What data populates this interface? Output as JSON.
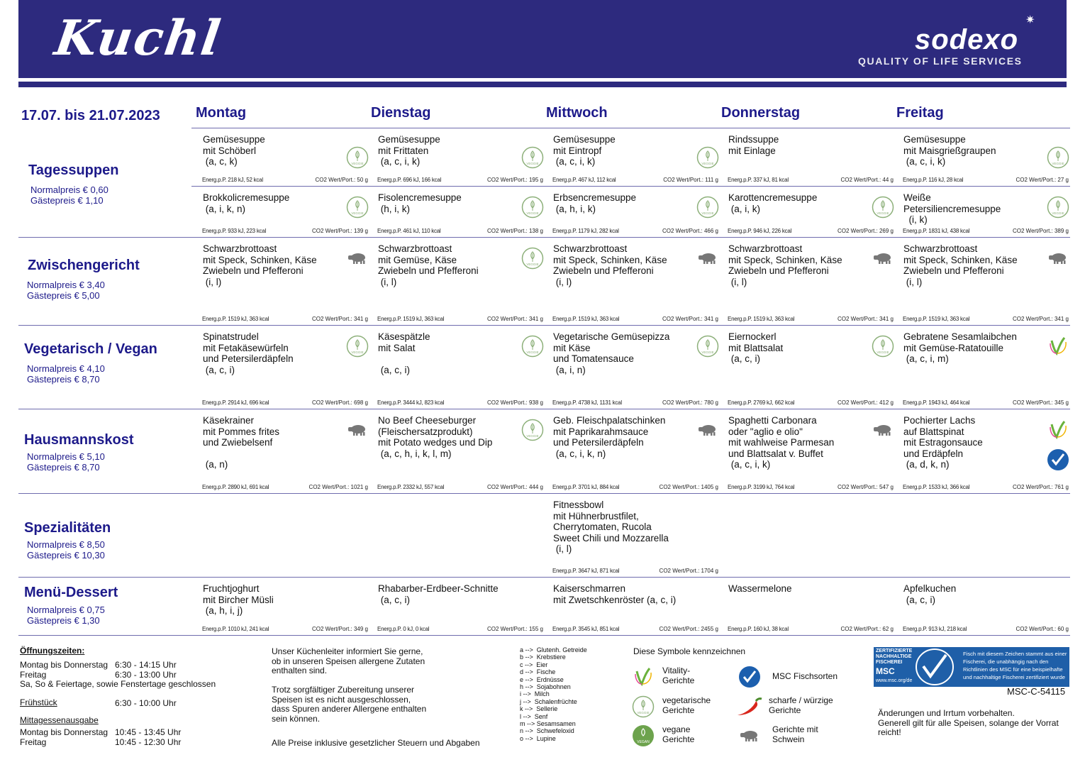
{
  "header": {
    "logo_text": "Kuchl",
    "brand": "sodexo",
    "brand_tagline": "QUALITY OF LIFE SERVICES"
  },
  "week": "17.07. bis 21.07.2023",
  "days": [
    "Montag",
    "Dienstag",
    "Mittwoch",
    "Donnerstag",
    "Freitag"
  ],
  "colors": {
    "navy": "#2d2a7e",
    "heading": "#1d1a8a",
    "veggie": "#7fa866",
    "pig": "#777777",
    "msc": "#1c5fae"
  },
  "categories": [
    {
      "name": "Tagessuppen",
      "normal": "Normalpreis € 0,60",
      "guest": "Gästepreis € 1,10",
      "rows": [
        [
          {
            "lines": [
              "Gemüsesuppe",
              "mit Schöberl",
              " (a, c, k)"
            ],
            "icons": [
              "veggie"
            ],
            "energy": "Energ.p.P. 218 kJ, 52 kcal",
            "co2": "CO2 Wert/Port.: 50 g"
          },
          {
            "lines": [
              "Gemüsesuppe",
              "mit Frittaten",
              " (a, c, i, k)"
            ],
            "icons": [
              "veggie"
            ],
            "energy": "Energ.p.P. 696 kJ, 166 kcal",
            "co2": "CO2 Wert/Port.: 195 g"
          },
          {
            "lines": [
              "Gemüsesuppe",
              "mit Eintropf",
              " (a, c, i, k)"
            ],
            "icons": [
              "veggie"
            ],
            "energy": "Energ.p.P. 467 kJ, 112 kcal",
            "co2": "CO2 Wert/Port.: 111 g"
          },
          {
            "lines": [
              "Rindssuppe",
              "mit Einlage"
            ],
            "icons": [],
            "energy": "Energ.p.P. 337 kJ, 81 kcal",
            "co2": "CO2 Wert/Port.: 44 g"
          },
          {
            "lines": [
              "Gemüsesuppe",
              "mit Maisgrießgraupen",
              " (a, c, i, k)"
            ],
            "icons": [
              "veggie"
            ],
            "energy": "Energ.p.P. 116 kJ, 28 kcal",
            "co2": "CO2 Wert/Port.: 27 g"
          }
        ],
        [
          {
            "lines": [
              "Brokkolicremesuppe",
              " (a, i, k, n)"
            ],
            "icons": [
              "veggie"
            ],
            "energy": "Energ.p.P. 933 kJ, 223 kcal",
            "co2": "CO2 Wert/Port.: 139 g"
          },
          {
            "lines": [
              "Fisolencremesuppe",
              " (h, i, k)"
            ],
            "icons": [
              "veggie"
            ],
            "energy": "Energ.p.P. 461 kJ, 110 kcal",
            "co2": "CO2 Wert/Port.: 138 g"
          },
          {
            "lines": [
              "Erbsencremesuppe",
              " (a, h, i, k)"
            ],
            "icons": [
              "veggie"
            ],
            "energy": "Energ.p.P. 1179 kJ, 282 kcal",
            "co2": "CO2 Wert/Port.: 466 g"
          },
          {
            "lines": [
              "Karottencremesuppe",
              " (a, i, k)"
            ],
            "icons": [
              "veggie"
            ],
            "energy": "Energ.p.P. 946 kJ, 226 kcal",
            "co2": "CO2 Wert/Port.: 269 g"
          },
          {
            "lines": [
              "Weiße",
              "Petersiliencremesuppe",
              "  (i, k)"
            ],
            "icons": [
              "veggie"
            ],
            "energy": "Energ.p.P. 1831 kJ, 438 kcal",
            "co2": "CO2 Wert/Port.: 389 g"
          }
        ]
      ]
    },
    {
      "name": "Zwischengericht",
      "normal": "Normalpreis € 3,40",
      "guest": "Gästepreis € 5,00",
      "rows": [
        [
          {
            "lines": [
              "Schwarzbrottoast",
              "mit Speck, Schinken, Käse",
              "Zwiebeln und Pfefferoni",
              " (i, l)"
            ],
            "icons": [
              "pig"
            ],
            "energy": "Energ.p.P. 1519 kJ, 363 kcal",
            "co2": "CO2 Wert/Port.: 341 g"
          },
          {
            "lines": [
              "Schwarzbrottoast",
              "mit Gemüse, Käse",
              "Zwiebeln und Pfefferoni",
              " (i, l)"
            ],
            "icons": [
              "veggie"
            ],
            "energy": "Energ.p.P. 1519 kJ, 363 kcal",
            "co2": "CO2 Wert/Port.: 341 g"
          },
          {
            "lines": [
              "Schwarzbrottoast",
              "mit Speck, Schinken, Käse",
              "Zwiebeln und Pfefferoni",
              " (i, l)"
            ],
            "icons": [
              "pig"
            ],
            "energy": "Energ.p.P. 1519 kJ, 363 kcal",
            "co2": "CO2 Wert/Port.: 341 g"
          },
          {
            "lines": [
              "Schwarzbrottoast",
              "mit Speck, Schinken, Käse",
              "Zwiebeln und Pfefferoni",
              " (i, l)"
            ],
            "icons": [
              "pig"
            ],
            "energy": "Energ.p.P. 1519 kJ, 363 kcal",
            "co2": "CO2 Wert/Port.: 341 g"
          },
          {
            "lines": [
              "Schwarzbrottoast",
              "mit Speck, Schinken, Käse",
              "Zwiebeln und Pfefferoni",
              " (i, l)"
            ],
            "icons": [
              "pig"
            ],
            "energy": "Energ.p.P. 1519 kJ, 363 kcal",
            "co2": "CO2 Wert/Port.: 341 g"
          }
        ]
      ]
    },
    {
      "name": "Vegetarisch / Vegan",
      "normal": "Normalpreis € 4,10",
      "guest": "Gästepreis € 8,70",
      "rows": [
        [
          {
            "lines": [
              "Spinatstrudel",
              "mit Fetakäsewürfeln",
              "und Petersilerdäpfeln",
              " (a, c, i)"
            ],
            "icons": [
              "veggie"
            ],
            "energy": "Energ.p.P. 2914 kJ, 696 kcal",
            "co2": "CO2 Wert/Port.: 698 g"
          },
          {
            "lines": [
              "Käsespätzle",
              "mit Salat",
              "",
              " (a, c, i)"
            ],
            "icons": [
              "veggie"
            ],
            "energy": "Energ.p.P. 3444 kJ, 823 kcal",
            "co2": "CO2 Wert/Port.: 938 g"
          },
          {
            "lines": [
              "Vegetarische Gemüsepizza",
              "mit Käse",
              "und Tomatensauce",
              " (a, i, n)"
            ],
            "icons": [
              "veggie"
            ],
            "energy": "Energ.p.P. 4738 kJ, 1131 kcal",
            "co2": "CO2 Wert/Port.: 780 g"
          },
          {
            "lines": [
              "Eiernockerl",
              "mit Blattsalat",
              " (a, c, i)"
            ],
            "icons": [
              "veggie"
            ],
            "energy": "Energ.p.P. 2769 kJ, 662 kcal",
            "co2": "CO2 Wert/Port.: 412 g"
          },
          {
            "lines": [
              "Gebratene Sesamlaibchen",
              "mit Gemüse-Ratatouille",
              " (a, c, i, m)"
            ],
            "icons": [
              "vitality"
            ],
            "energy": "Energ.p.P. 1943 kJ, 464 kcal",
            "co2": "CO2 Wert/Port.: 345 g"
          }
        ]
      ]
    },
    {
      "name": "Hausmannskost",
      "normal": "Normalpreis € 5,10",
      "guest": "Gästepreis € 8,70",
      "rows": [
        [
          {
            "lines": [
              "Käsekrainer",
              "mit Pommes frites",
              "und Zwiebelsenf",
              "",
              " (a, n)"
            ],
            "icons": [
              "pig"
            ],
            "energy": "Energ.p.P. 2890 kJ, 691 kcal",
            "co2": "CO2 Wert/Port.: 1021 g"
          },
          {
            "lines": [
              "No Beef Cheeseburger",
              "(Fleischersatzprodukt)",
              "mit Potato wedges und Dip",
              " (a, c, h, i, k, l, m)"
            ],
            "icons": [
              "veggie"
            ],
            "energy": "Energ.p.P. 2332 kJ, 557 kcal",
            "co2": "CO2 Wert/Port.: 444 g"
          },
          {
            "lines": [
              "Geb. Fleischpalatschinken",
              "mit Paprikarahmsauce",
              "und Petersilerdäpfeln",
              " (a, c, i, k, n)"
            ],
            "icons": [
              "pig"
            ],
            "energy": "Energ.p.P. 3701 kJ, 884 kcal",
            "co2": "CO2 Wert/Port.: 1405 g"
          },
          {
            "lines": [
              "Spaghetti Carbonara",
              "oder \"aglio e olio\"",
              "mit wahlweise Parmesan",
              "und Blattsalat v. Buffet",
              " (a, c, i, k)"
            ],
            "icons": [
              "pig"
            ],
            "energy": "Energ.p.P. 3199 kJ, 764 kcal",
            "co2": "CO2 Wert/Port.: 547 g"
          },
          {
            "lines": [
              "Pochierter Lachs",
              "auf Blattspinat",
              "mit Estragonsauce",
              "und Erdäpfeln",
              " (a, d, k, n)"
            ],
            "icons": [
              "vitality",
              "msc"
            ],
            "energy": "Energ.p.P. 1533 kJ, 366 kcal",
            "co2": "CO2 Wert/Port.: 761 g"
          }
        ]
      ]
    },
    {
      "name": "Spezialitäten",
      "normal": "Normalpreis € 8,50",
      "guest": "Gästepreis € 10,30",
      "rows": [
        [
          null,
          null,
          {
            "lines": [
              "Fitnessbowl",
              "mit Hühnerbrustfilet,",
              "Cherrytomaten, Rucola",
              "Sweet Chili und Mozzarella",
              " (i, l)"
            ],
            "icons": [],
            "energy": "Energ.p.P. 3647 kJ, 871 kcal",
            "co2": "CO2 Wert/Port.: 1704 g"
          },
          null,
          null
        ]
      ]
    },
    {
      "name": "Menü-Dessert",
      "normal": "Normalpreis € 0,75",
      "guest": "Gästepreis € 1,30",
      "rows": [
        [
          {
            "lines": [
              "Fruchtjoghurt",
              "mit Bircher Müsli",
              " (a, h, i, j)"
            ],
            "icons": [],
            "energy": "Energ.p.P. 1010 kJ, 241 kcal",
            "co2": "CO2 Wert/Port.: 349 g"
          },
          {
            "lines": [
              "Rhabarber-Erdbeer-Schnitte",
              " (a, c, i)"
            ],
            "icons": [],
            "energy": "Energ.p.P. 0 kJ, 0 kcal",
            "co2": "CO2 Wert/Port.: 155 g"
          },
          {
            "lines": [
              "Kaiserschmarren",
              "mit Zwetschkenröster (a, c, i)"
            ],
            "icons": [],
            "energy": "Energ.p.P. 3545 kJ, 851 kcal",
            "co2": "CO2 Wert/Port.: 2455 g"
          },
          {
            "lines": [
              "Wassermelone"
            ],
            "icons": [],
            "energy": "Energ.p.P. 160 kJ, 38 kcal",
            "co2": "CO2 Wert/Port.: 62 g"
          },
          {
            "lines": [
              "Apfelkuchen",
              " (a, c, i)"
            ],
            "icons": [],
            "energy": "Energ.p.P. 913 kJ, 218 kcal",
            "co2": "CO2 Wert/Port.: 60 g"
          }
        ]
      ]
    }
  ],
  "footer": {
    "hours_title": "Öffnungszeiten:",
    "hours": [
      [
        "Montag bis Donnerstag",
        "6:30 - 14:15 Uhr"
      ],
      [
        "Freitag",
        "6:30 - 13:00 Uhr"
      ]
    ],
    "closed": "Sa, So & Feiertage, sowie Fenstertage geschlossen",
    "breakfast_title": "Frühstück",
    "breakfast_time": "6:30 - 10:00 Uhr",
    "lunch_title": "Mittagessenausgabe",
    "lunch": [
      [
        "Montag bis Donnerstag",
        "10:45 - 13:45 Uhr"
      ],
      [
        "Freitag",
        "10:45 - 12:30 Uhr"
      ]
    ],
    "info1": "Unser Küchenleiter informiert Sie gerne,\nob in unseren Speisen allergene Zutaten\nenthalten sind.",
    "info2": "Trotz sorgfältiger Zubereitung unserer\nSpeisen ist es nicht ausgeschlossen,\ndass Spuren anderer Allergene enthalten\nsein können.",
    "info3": "Alle Preise inklusive gesetzlicher Steuern und Abgaben",
    "allergens": [
      "a -->  Glutenh. Getreide",
      "b -->  Krebstiere",
      "c -->  Eier",
      "d -->  Fische",
      "e -->  Erdnüsse",
      "h -->  Sojabohnen",
      "i -->  Milch",
      "j -->  Schalenfrüchte",
      "k -->  Sellerie",
      "l -->  Senf",
      "m --> Sesamsamen",
      "n -->  Schwefeloxid",
      "o -->  Lupine"
    ],
    "legend_title": "Diese Symbole kennzeichnen",
    "legend": [
      {
        "icon": "vitality",
        "label": "Vitality-\nGerichte"
      },
      {
        "icon": "msc",
        "label": "MSC Fischsorten"
      },
      {
        "icon": "veggie",
        "label": "vegetarische\nGerichte"
      },
      {
        "icon": "chili",
        "label": "scharfe / würzige\nGerichte"
      },
      {
        "icon": "vegan",
        "label": "vegane\nGerichte"
      },
      {
        "icon": "pig",
        "label": "Gerichte mit\nSchwein"
      }
    ],
    "msc_left": "ZERTIFIZIERTE\nNACHHALTIGE\nFISCHEREI",
    "msc_big": "MSC",
    "msc_url": "www.msc.org/de",
    "msc_right": "Fisch mit diesem Zeichen stammt aus einer\nFischerei, die unabhängig nach den\nRichtlinien des MSC für eine beispielhafte\nund nachhaltige Fischerei zertifiziert wurde",
    "msc_code": "MSC-C-54115",
    "disclaimer": "Änderungen und Irrtum vorbehalten.\nGenerell gilt für alle Speisen, solange der Vorrat\nreicht!"
  }
}
